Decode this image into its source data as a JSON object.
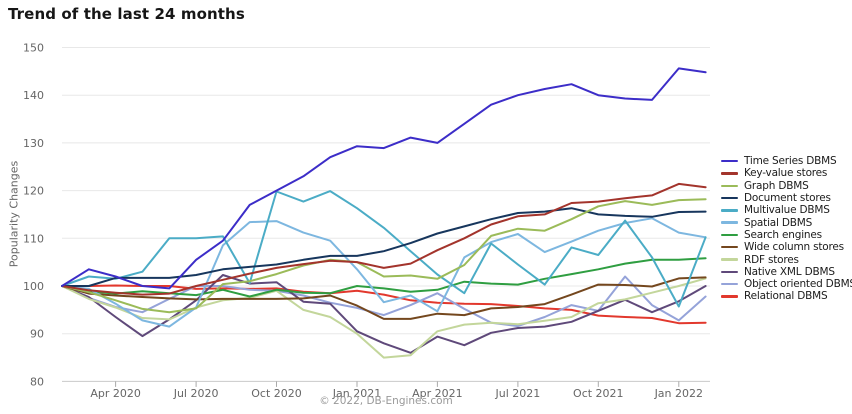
{
  "chart_data": {
    "type": "line",
    "title": "Trend of the last 24 months",
    "ylabel": "Popularity Changes",
    "footer": "© 2022, DB-Engines.com",
    "grid": true,
    "legend_position": "right",
    "ylim": [
      80,
      150
    ],
    "y_ticks": [
      80,
      90,
      100,
      110,
      120,
      130,
      140,
      150
    ],
    "x_months": [
      "Feb 2020",
      "Mar 2020",
      "Apr 2020",
      "May 2020",
      "Jun 2020",
      "Jul 2020",
      "Aug 2020",
      "Sep 2020",
      "Oct 2020",
      "Nov 2020",
      "Dec 2020",
      "Jan 2021",
      "Feb 2021",
      "Mar 2021",
      "Apr 2021",
      "May 2021",
      "Jun 2021",
      "Jul 2021",
      "Aug 2021",
      "Sep 2021",
      "Oct 2021",
      "Nov 2021",
      "Dec 2021",
      "Jan 2022",
      "Feb 2022"
    ],
    "x_tick_labels": [
      "Apr 2020",
      "Jul 2020",
      "Oct 2020",
      "Jan 2021",
      "Apr 2021",
      "Jul 2021",
      "Oct 2021",
      "Jan 2022"
    ],
    "x_tick_indices": [
      2,
      5,
      8,
      11,
      14,
      17,
      20,
      23
    ],
    "series": [
      {
        "name": "Time Series DBMS",
        "color": "#3c2dc8",
        "values": [
          100,
          103.5,
          102,
          100,
          99.5,
          105.5,
          109.5,
          117,
          120,
          123,
          127,
          129.3,
          128.9,
          131.1,
          130,
          134,
          138,
          140,
          141.3,
          142.3,
          140,
          139.3,
          139,
          145.6,
          144.8
        ]
      },
      {
        "name": "Key-value stores",
        "color": "#a3342c",
        "values": [
          100,
          99.1,
          98.6,
          98.2,
          98.4,
          100,
          101.3,
          102.6,
          103.8,
          104.6,
          105.3,
          105,
          103.8,
          104.7,
          107.5,
          110,
          112.9,
          114.6,
          115,
          117.4,
          117.7,
          118.4,
          119,
          121.4,
          120.7
        ]
      },
      {
        "name": "Graph DBMS",
        "color": "#9bbb59",
        "values": [
          100,
          98.7,
          97,
          95.2,
          94.5,
          95.3,
          100.4,
          101,
          102.5,
          104.3,
          105.5,
          105,
          102,
          102.2,
          101.5,
          104.4,
          110.5,
          112,
          111.6,
          114,
          116.7,
          117.8,
          117,
          118,
          118.2
        ]
      },
      {
        "name": "Document stores",
        "color": "#17365d",
        "values": [
          100,
          100,
          101.7,
          101.7,
          101.7,
          102.3,
          103.5,
          104,
          104.5,
          105.5,
          106.3,
          106.3,
          107.3,
          109,
          111,
          112.5,
          114,
          115.3,
          115.6,
          116.3,
          115,
          114.7,
          114.5,
          115.5,
          115.6
        ]
      },
      {
        "name": "Multivalue DBMS",
        "color": "#4bacc6",
        "values": [
          100,
          102,
          101.5,
          103,
          110,
          110,
          110.4,
          100.6,
          119.8,
          117.7,
          119.9,
          116.3,
          112.2,
          107.3,
          102.4,
          98.5,
          108.9,
          104.5,
          100.3,
          108.1,
          106.5,
          113.7,
          106,
          95.7,
          110.2
        ]
      },
      {
        "name": "Spatial DBMS",
        "color": "#7db7e0",
        "values": [
          100,
          99.4,
          96.3,
          92.8,
          91.5,
          95.5,
          108.5,
          113.4,
          113.6,
          111.2,
          109.5,
          103.5,
          96.6,
          98,
          94.7,
          106,
          109.2,
          110.9,
          107.1,
          109.3,
          111.6,
          113.2,
          114.2,
          111.2,
          110.2
        ]
      },
      {
        "name": "Search engines",
        "color": "#2f9e41",
        "values": [
          100,
          98.9,
          98.4,
          98.9,
          98.5,
          98.1,
          99.2,
          97.8,
          99.2,
          98.6,
          98.5,
          100,
          99.5,
          98.8,
          99.2,
          100.9,
          100.5,
          100.3,
          101.5,
          102.5,
          103.5,
          104.7,
          105.5,
          105.5,
          105.8
        ]
      },
      {
        "name": "Wide column stores",
        "color": "#74471e",
        "values": [
          100,
          98.4,
          98,
          97.7,
          97.4,
          97.2,
          97.3,
          97.3,
          97.3,
          97.4,
          98,
          95.9,
          93.1,
          93.1,
          94.2,
          93.9,
          95.3,
          95.6,
          96.2,
          98.2,
          100.3,
          100.2,
          99.9,
          101.6,
          101.8
        ]
      },
      {
        "name": "RDF stores",
        "color": "#c3d69b",
        "values": [
          100,
          97.3,
          95.5,
          93.3,
          93,
          95.5,
          97,
          97.5,
          99,
          95,
          93.5,
          90,
          85,
          85.5,
          90.5,
          91.9,
          92.3,
          92,
          92.7,
          93.5,
          96.4,
          97.2,
          98.6,
          100,
          101.6
        ]
      },
      {
        "name": "Native XML DBMS",
        "color": "#5f497a",
        "values": [
          100,
          97.7,
          93.5,
          89.5,
          93,
          97,
          102.3,
          100.5,
          100.8,
          96.7,
          96.3,
          90.5,
          88,
          86,
          89.4,
          87.6,
          90.2,
          91.2,
          91.5,
          92.5,
          94.8,
          97.1,
          94.5,
          96.8,
          100
        ]
      },
      {
        "name": "Object oriented DBMS",
        "color": "#95a3d9",
        "values": [
          100,
          97.5,
          95.6,
          94.5,
          97.3,
          100,
          100,
          99.2,
          99,
          98,
          96.5,
          95.4,
          93.9,
          96,
          98.5,
          95.2,
          92.3,
          91.6,
          93.5,
          96,
          94.8,
          102,
          96,
          92.8,
          97.8
        ]
      },
      {
        "name": "Relational DBMS",
        "color": "#e2382d",
        "values": [
          100,
          100,
          100.1,
          100,
          100,
          99.4,
          99.5,
          99.4,
          99.5,
          98.8,
          98.5,
          99,
          98.2,
          97,
          96.5,
          96.3,
          96.2,
          95.8,
          95.3,
          95,
          93.8,
          93.5,
          93.3,
          92.2,
          92.3
        ]
      }
    ]
  }
}
